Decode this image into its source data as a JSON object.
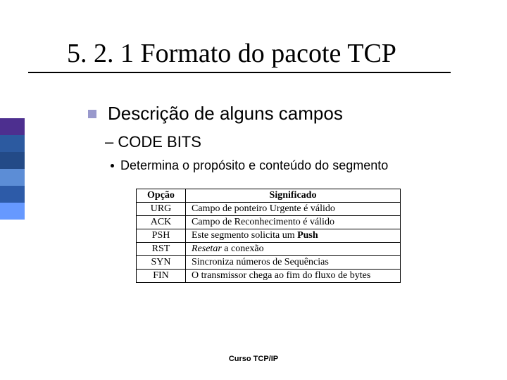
{
  "stripe_colors": [
    "#4d2f8f",
    "#2c5aa0",
    "#234a87",
    "#5c8dd6",
    "#2d5ba8",
    "#6699ff"
  ],
  "title": "5. 2. 1 Formato do pacote TCP",
  "bullet_color": "#9999cc",
  "lvl1_text": "Descrição de alguns campos",
  "lvl2_text": "– CODE BITS",
  "lvl3_text": "Determina o propósito e conteúdo do segmento",
  "table": {
    "header": [
      "Opção",
      "Significado"
    ],
    "rows": [
      [
        "URG",
        "Campo de ponteiro Urgente é válido"
      ],
      [
        "ACK",
        "Campo de Reconhecimento é válido"
      ],
      [
        "PSH",
        {
          "pre": "Este segmento solicita um ",
          "bold": "Push"
        }
      ],
      [
        "RST",
        {
          "italic_pre": "Resetar",
          "post": " a conexão"
        }
      ],
      [
        "SYN",
        "Sincroniza números de Sequências"
      ],
      [
        "FIN",
        "O transmissor chega ao fim do fluxo de bytes"
      ]
    ]
  },
  "footer": "Curso TCP/IP"
}
